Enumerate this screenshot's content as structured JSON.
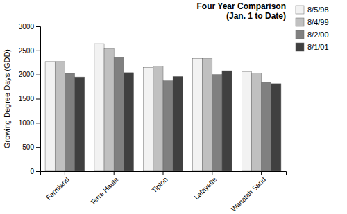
{
  "chart_data": {
    "type": "bar",
    "title": "Four Year Comparison\n(Jan. 1 to Date)",
    "ylabel": "Growing Degree Days (GDD)",
    "categories": [
      "Farmland",
      "Terre Haute",
      "Tipton",
      "Lafayette",
      "Wanatah Sand"
    ],
    "series": [
      {
        "name": "8/5/98",
        "color": "#f2f2f2",
        "values": [
          2270,
          2640,
          2145,
          2330,
          2065
        ]
      },
      {
        "name": "8/4/99",
        "color": "#c0c0c0",
        "values": [
          2270,
          2530,
          2175,
          2330,
          2030
        ]
      },
      {
        "name": "8/2/00",
        "color": "#808080",
        "values": [
          2025,
          2360,
          1870,
          2000,
          1840
        ]
      },
      {
        "name": "8/1/01",
        "color": "#404040",
        "values": [
          1950,
          2040,
          1960,
          2080,
          1810
        ]
      }
    ],
    "ylim": [
      0,
      3000
    ],
    "yticks": [
      0,
      500,
      1000,
      1500,
      2000,
      2500,
      3000
    ],
    "grid": false,
    "legend": "top-right"
  }
}
